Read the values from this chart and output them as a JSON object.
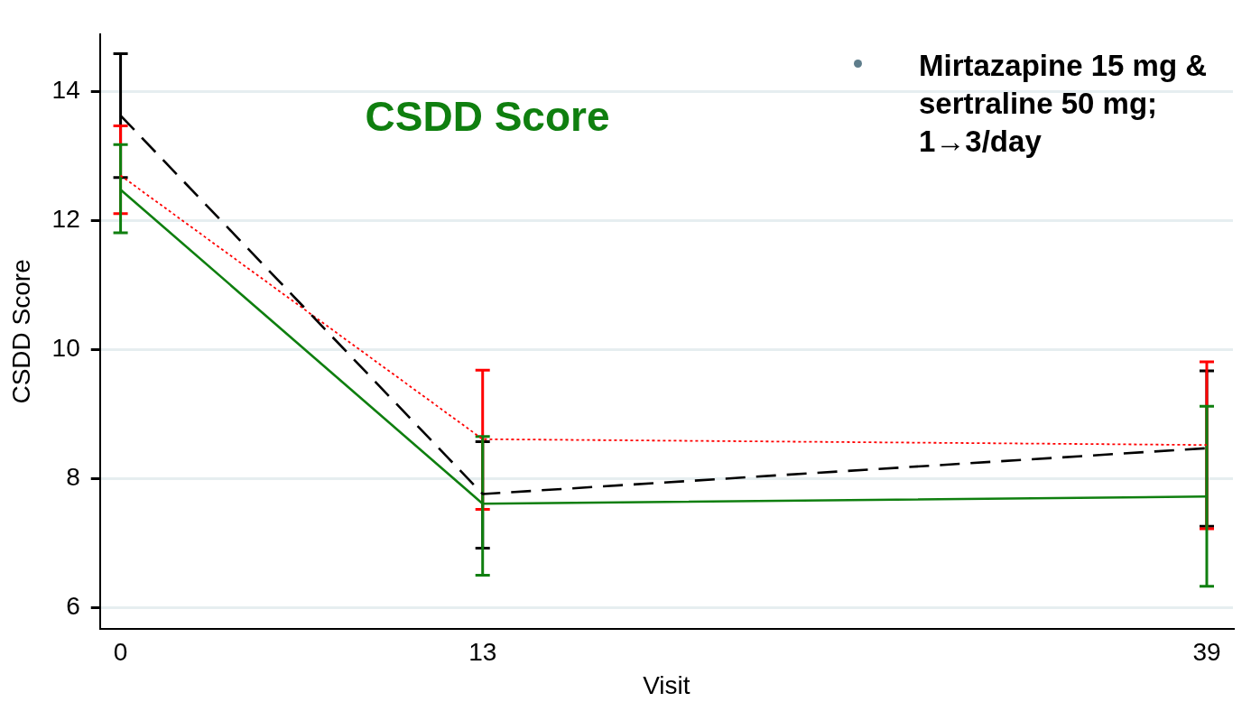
{
  "chart_data": {
    "type": "line",
    "title": "CSDD Score",
    "xlabel": "Visit",
    "ylabel": "CSDD Score",
    "x": [
      0,
      13,
      39
    ],
    "xlim": [
      -0.74,
      39.94
    ],
    "xticks": [
      0,
      13,
      39
    ],
    "ylim": [
      5.67,
      14.89
    ],
    "yticks": [
      6,
      8,
      10,
      12,
      14
    ],
    "grid": "y",
    "marker": "none",
    "series": [
      {
        "color": "#000000",
        "line_style": "dashed",
        "values": [
          13.63,
          7.76,
          8.47
        ],
        "errors": [
          [
            12.67,
            14.59
          ],
          [
            6.92,
            8.57
          ],
          [
            7.26,
            9.67
          ]
        ]
      },
      {
        "color": "#ff0000",
        "line_style": "dotted",
        "values": [
          12.7,
          8.61,
          8.52
        ],
        "errors": [
          [
            12.11,
            13.47
          ],
          [
            7.52,
            9.68
          ],
          [
            7.22,
            9.81
          ]
        ]
      },
      {
        "color": "#0f7f0f",
        "line_style": "solid",
        "values": [
          12.48,
          7.61,
          7.72
        ],
        "errors": [
          [
            11.81,
            13.18
          ],
          [
            6.5,
            8.65
          ],
          [
            6.33,
            9.12
          ]
        ]
      }
    ],
    "annotations": [
      "Mirtazapine 15 mg & sertraline 50 mg; 1→3/day"
    ]
  }
}
